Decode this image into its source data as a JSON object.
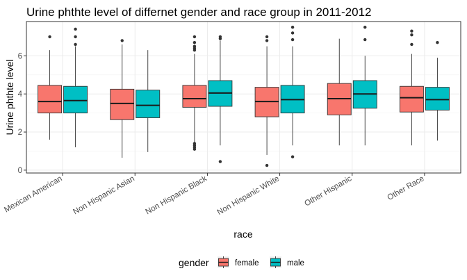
{
  "chart_data": {
    "type": "boxplot",
    "title": "Urine phthte level of differnet gender and race group in 2011-2012",
    "xlabel": "race",
    "ylabel": "Urine phthte level",
    "ylim": [
      -0.15,
      7.8
    ],
    "yticks": [
      0,
      2,
      4,
      6
    ],
    "grid": true,
    "legend": {
      "title": "gender",
      "placement": "bottom",
      "entries": [
        {
          "name": "female",
          "color": "#F8766D"
        },
        {
          "name": "male",
          "color": "#00BFC4"
        }
      ]
    },
    "categories": [
      "Mexican American",
      "Non Hispanic Asian",
      "Non Hispanic Black",
      "Non Hispanic White",
      "Other Hispanic",
      "Other Race"
    ],
    "series": [
      {
        "name": "female",
        "color": "#F8766D",
        "boxes": [
          {
            "min": 1.6,
            "q1": 3.0,
            "median": 3.6,
            "q3": 4.45,
            "max": 6.3,
            "outliers": [
              7.0
            ]
          },
          {
            "min": 0.65,
            "q1": 2.65,
            "median": 3.5,
            "q3": 4.25,
            "max": 6.6,
            "outliers": [
              6.8
            ]
          },
          {
            "min": 1.45,
            "q1": 3.3,
            "median": 3.75,
            "q3": 4.45,
            "max": 6.1,
            "outliers": [
              1.1,
              1.2,
              1.3,
              1.4,
              6.3,
              6.4,
              6.5,
              6.7,
              7.0
            ]
          },
          {
            "min": 0.8,
            "q1": 2.8,
            "median": 3.6,
            "q3": 4.35,
            "max": 6.5,
            "outliers": [
              0.25,
              6.8,
              7.0
            ]
          },
          {
            "min": 1.3,
            "q1": 2.9,
            "median": 3.75,
            "q3": 4.55,
            "max": 6.9,
            "outliers": []
          },
          {
            "min": 1.3,
            "q1": 3.05,
            "median": 3.8,
            "q3": 4.4,
            "max": 6.1,
            "outliers": [
              6.6,
              7.1,
              7.3
            ]
          }
        ]
      },
      {
        "name": "male",
        "color": "#00BFC4",
        "boxes": [
          {
            "min": 1.2,
            "q1": 3.0,
            "median": 3.65,
            "q3": 4.4,
            "max": 6.5,
            "outliers": [
              6.6,
              7.0,
              7.4
            ]
          },
          {
            "min": 0.95,
            "q1": 2.75,
            "median": 3.4,
            "q3": 4.2,
            "max": 6.3,
            "outliers": []
          },
          {
            "min": 1.3,
            "q1": 3.35,
            "median": 4.05,
            "q3": 4.7,
            "max": 6.8,
            "outliers": [
              0.45,
              6.9,
              7.0
            ]
          },
          {
            "min": 1.3,
            "q1": 3.0,
            "median": 3.7,
            "q3": 4.45,
            "max": 6.5,
            "outliers": [
              0.7,
              6.85,
              7.2,
              7.5
            ]
          },
          {
            "min": 1.3,
            "q1": 3.25,
            "median": 4.0,
            "q3": 4.7,
            "max": 6.0,
            "outliers": [
              6.85,
              7.5
            ]
          },
          {
            "min": 1.55,
            "q1": 3.15,
            "median": 3.7,
            "q3": 4.35,
            "max": 5.9,
            "outliers": [
              6.7
            ]
          }
        ]
      }
    ]
  }
}
